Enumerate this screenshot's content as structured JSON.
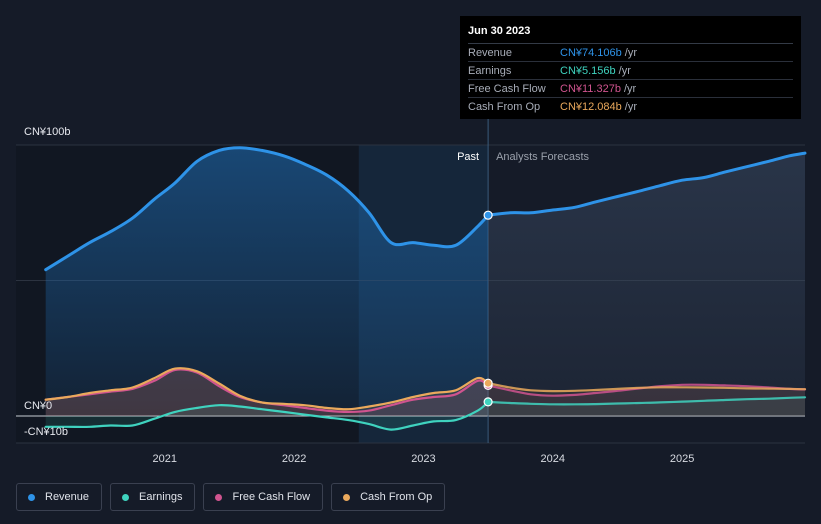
{
  "chart_data": {
    "type": "line",
    "ylim": [
      -10,
      100
    ],
    "y_tick_labels": [
      {
        "value": 100,
        "label": "CN¥100b"
      },
      {
        "value": 0,
        "label": "CN¥0"
      },
      {
        "value": -10,
        "label": "-CN¥10b"
      }
    ],
    "x_ticks": [
      {
        "value": 2021.0,
        "label": "2021"
      },
      {
        "value": 2022.0,
        "label": "2022"
      },
      {
        "value": 2023.0,
        "label": "2023"
      },
      {
        "value": 2024.0,
        "label": "2024"
      },
      {
        "value": 2025.0,
        "label": "2025"
      }
    ],
    "xlim": [
      2019.85,
      2025.95
    ],
    "past_label": "Past",
    "forecast_label": "Analysts Forecasts",
    "divider_x": 2023.5,
    "highlight_start_x": 2022.5,
    "series": [
      {
        "name": "Revenue",
        "color": "#2e93e8",
        "points": [
          [
            2020.08,
            54
          ],
          [
            2020.25,
            59
          ],
          [
            2020.42,
            64
          ],
          [
            2020.58,
            68
          ],
          [
            2020.75,
            73
          ],
          [
            2020.92,
            80
          ],
          [
            2021.08,
            86
          ],
          [
            2021.25,
            94
          ],
          [
            2021.42,
            98
          ],
          [
            2021.58,
            99
          ],
          [
            2021.75,
            98
          ],
          [
            2021.92,
            96
          ],
          [
            2022.08,
            93
          ],
          [
            2022.25,
            89
          ],
          [
            2022.42,
            83
          ],
          [
            2022.58,
            75
          ],
          [
            2022.75,
            64
          ],
          [
            2022.92,
            64
          ],
          [
            2023.08,
            63
          ],
          [
            2023.25,
            63
          ],
          [
            2023.42,
            70
          ],
          [
            2023.5,
            74.1
          ]
        ],
        "forecast": [
          [
            2023.5,
            74.1
          ],
          [
            2023.67,
            75
          ],
          [
            2023.83,
            75
          ],
          [
            2024.0,
            76
          ],
          [
            2024.17,
            77
          ],
          [
            2024.33,
            79
          ],
          [
            2024.5,
            81
          ],
          [
            2024.67,
            83
          ],
          [
            2024.83,
            85
          ],
          [
            2025.0,
            87
          ],
          [
            2025.17,
            88
          ],
          [
            2025.33,
            90
          ],
          [
            2025.5,
            92
          ],
          [
            2025.67,
            94
          ],
          [
            2025.83,
            96
          ],
          [
            2025.95,
            97
          ]
        ]
      },
      {
        "name": "Earnings",
        "color": "#3fd3bf",
        "points": [
          [
            2020.08,
            -4
          ],
          [
            2020.25,
            -4
          ],
          [
            2020.42,
            -4
          ],
          [
            2020.58,
            -3.5
          ],
          [
            2020.75,
            -3.5
          ],
          [
            2020.92,
            -1
          ],
          [
            2021.08,
            1.5
          ],
          [
            2021.25,
            3
          ],
          [
            2021.42,
            4
          ],
          [
            2021.58,
            3.5
          ],
          [
            2021.75,
            2.5
          ],
          [
            2021.92,
            1.5
          ],
          [
            2022.08,
            0.5
          ],
          [
            2022.25,
            -0.5
          ],
          [
            2022.42,
            -1.5
          ],
          [
            2022.58,
            -3
          ],
          [
            2022.75,
            -5
          ],
          [
            2022.92,
            -3.5
          ],
          [
            2023.08,
            -2
          ],
          [
            2023.25,
            -1.5
          ],
          [
            2023.42,
            2
          ],
          [
            2023.5,
            5.2
          ]
        ],
        "forecast": [
          [
            2023.5,
            5.2
          ],
          [
            2023.67,
            4.8
          ],
          [
            2023.83,
            4.5
          ],
          [
            2024.0,
            4.3
          ],
          [
            2024.17,
            4.3
          ],
          [
            2024.33,
            4.4
          ],
          [
            2024.5,
            4.6
          ],
          [
            2024.67,
            4.8
          ],
          [
            2024.83,
            5.0
          ],
          [
            2025.0,
            5.3
          ],
          [
            2025.17,
            5.6
          ],
          [
            2025.33,
            5.9
          ],
          [
            2025.5,
            6.2
          ],
          [
            2025.67,
            6.4
          ],
          [
            2025.83,
            6.7
          ],
          [
            2025.95,
            6.9
          ]
        ]
      },
      {
        "name": "Free Cash Flow",
        "color": "#d0548f",
        "points": [
          [
            2020.08,
            6
          ],
          [
            2020.25,
            7
          ],
          [
            2020.42,
            8
          ],
          [
            2020.58,
            9
          ],
          [
            2020.75,
            10
          ],
          [
            2020.92,
            13
          ],
          [
            2021.08,
            17
          ],
          [
            2021.25,
            16
          ],
          [
            2021.42,
            11
          ],
          [
            2021.58,
            7
          ],
          [
            2021.75,
            5
          ],
          [
            2021.92,
            4
          ],
          [
            2022.08,
            3
          ],
          [
            2022.25,
            2
          ],
          [
            2022.42,
            1.5
          ],
          [
            2022.58,
            2
          ],
          [
            2022.75,
            4
          ],
          [
            2022.92,
            6
          ],
          [
            2023.08,
            7
          ],
          [
            2023.25,
            8
          ],
          [
            2023.42,
            13
          ],
          [
            2023.5,
            11.3
          ]
        ],
        "forecast": [
          [
            2023.5,
            11.3
          ],
          [
            2023.67,
            9.5
          ],
          [
            2023.83,
            8
          ],
          [
            2024.0,
            7.5
          ],
          [
            2024.17,
            7.8
          ],
          [
            2024.33,
            8.5
          ],
          [
            2024.5,
            9.3
          ],
          [
            2024.67,
            10.2
          ],
          [
            2024.83,
            11
          ],
          [
            2025.0,
            11.5
          ],
          [
            2025.17,
            11.5
          ],
          [
            2025.33,
            11.3
          ],
          [
            2025.5,
            11
          ],
          [
            2025.67,
            10.5
          ],
          [
            2025.83,
            10
          ],
          [
            2025.95,
            9.8
          ]
        ]
      },
      {
        "name": "Cash From Op",
        "color": "#eaa95c",
        "points": [
          [
            2020.08,
            6
          ],
          [
            2020.25,
            7
          ],
          [
            2020.42,
            8.5
          ],
          [
            2020.58,
            9.5
          ],
          [
            2020.75,
            10.5
          ],
          [
            2020.92,
            14
          ],
          [
            2021.08,
            17.5
          ],
          [
            2021.25,
            16.5
          ],
          [
            2021.42,
            12
          ],
          [
            2021.58,
            7.5
          ],
          [
            2021.75,
            5
          ],
          [
            2021.92,
            4.5
          ],
          [
            2022.08,
            4
          ],
          [
            2022.25,
            3
          ],
          [
            2022.42,
            2.5
          ],
          [
            2022.58,
            3.5
          ],
          [
            2022.75,
            5
          ],
          [
            2022.92,
            7
          ],
          [
            2023.08,
            8.5
          ],
          [
            2023.25,
            9.5
          ],
          [
            2023.42,
            14
          ],
          [
            2023.5,
            12.1
          ]
        ],
        "forecast": [
          [
            2023.5,
            12.1
          ],
          [
            2023.67,
            10.5
          ],
          [
            2023.83,
            9.5
          ],
          [
            2024.0,
            9.2
          ],
          [
            2024.17,
            9.3
          ],
          [
            2024.33,
            9.6
          ],
          [
            2024.5,
            10.0
          ],
          [
            2024.67,
            10.4
          ],
          [
            2024.83,
            10.6
          ],
          [
            2025.0,
            10.6
          ],
          [
            2025.17,
            10.5
          ],
          [
            2025.33,
            10.4
          ],
          [
            2025.5,
            10.2
          ],
          [
            2025.67,
            10.1
          ],
          [
            2025.83,
            10.0
          ],
          [
            2025.95,
            9.9
          ]
        ]
      }
    ]
  },
  "tooltip": {
    "date": "Jun 30 2023",
    "rows": [
      {
        "name": "Revenue",
        "value": "CN¥74.106b",
        "unit": "/yr",
        "color": "#2e93e8"
      },
      {
        "name": "Earnings",
        "value": "CN¥5.156b",
        "unit": "/yr",
        "color": "#3fd3bf"
      },
      {
        "name": "Free Cash Flow",
        "value": "CN¥11.327b",
        "unit": "/yr",
        "color": "#d0548f"
      },
      {
        "name": "Cash From Op",
        "value": "CN¥12.084b",
        "unit": "/yr",
        "color": "#eaa95c"
      }
    ]
  },
  "legend": [
    {
      "label": "Revenue",
      "color": "#2e93e8"
    },
    {
      "label": "Earnings",
      "color": "#3fd3bf"
    },
    {
      "label": "Free Cash Flow",
      "color": "#d0548f"
    },
    {
      "label": "Cash From Op",
      "color": "#eaa95c"
    }
  ]
}
